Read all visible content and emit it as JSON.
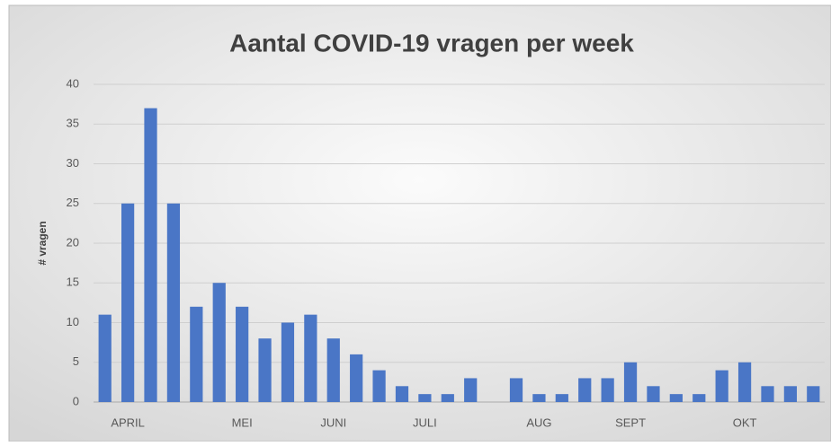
{
  "chart_data": {
    "type": "bar",
    "title": "Aantal COVID-19 vragen per week",
    "y_label": "# vragen",
    "categories": [
      null,
      "APRIL",
      null,
      null,
      null,
      null,
      "MEI",
      null,
      null,
      null,
      "JUNI",
      null,
      null,
      null,
      "JULI",
      null,
      null,
      null,
      null,
      "AUG",
      null,
      null,
      null,
      "SEPT",
      null,
      null,
      null,
      null,
      "OKT",
      null,
      null,
      null
    ],
    "values": [
      11,
      25,
      37,
      25,
      12,
      15,
      12,
      8,
      10,
      11,
      8,
      6,
      4,
      2,
      1,
      1,
      3,
      0,
      3,
      1,
      1,
      3,
      3,
      5,
      2,
      1,
      1,
      4,
      5,
      2,
      2,
      2
    ],
    "color": "#4a76c6",
    "ylim": [
      0,
      40
    ],
    "yticks": [
      0,
      5,
      10,
      15,
      20,
      25,
      30,
      35,
      40
    ],
    "grid": true
  }
}
